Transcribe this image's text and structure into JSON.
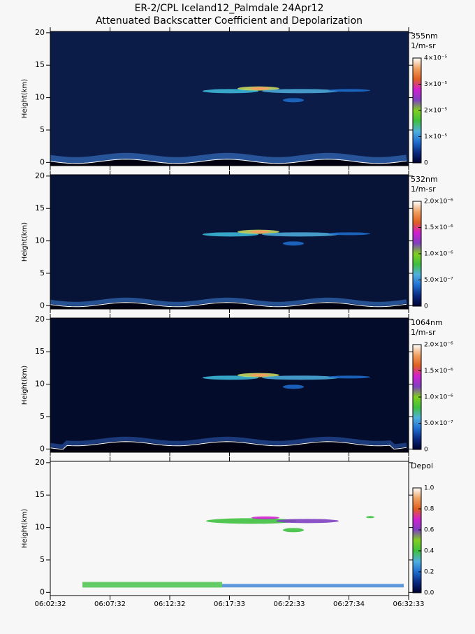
{
  "chart_data": [
    {
      "type": "heatmap",
      "title": "ER-2/CPL Iceland12_Palmdale 24Apr12",
      "subtitle": "Attenuated Backscatter Coefficient and Depolarization",
      "ylabel": "Height(km)",
      "ylim": [
        -0.5,
        20.2
      ],
      "yticks": [
        0,
        5,
        10,
        15,
        20
      ],
      "colorbar_title": "355nm",
      "colorbar_units": "1/m-sr",
      "clim": [
        0,
        4e-05
      ],
      "cticks": [
        0,
        {
          "value": 1e-05,
          "label": "1×10⁻⁵"
        },
        {
          "value": 2e-05,
          "label": "2×10⁻⁵"
        },
        {
          "value": 3e-05,
          "label": "3×10⁻⁵"
        },
        {
          "value": 4e-05,
          "label": "4×10⁻⁵"
        }
      ],
      "background": "#0c1c48",
      "colormap": [
        "#000030",
        "#0a2a80",
        "#1f6fd0",
        "#4fb0e0",
        "#3ec040",
        "#80d020",
        "#8040c0",
        "#d020d0",
        "#e06020",
        "#f0a060",
        "#ffffff"
      ]
    },
    {
      "type": "heatmap",
      "ylabel": "Height(km)",
      "ylim": [
        -0.5,
        20.2
      ],
      "yticks": [
        0,
        5,
        10,
        15,
        20
      ],
      "colorbar_title": "532nm",
      "colorbar_units": "1/m-sr",
      "clim": [
        0,
        2e-06
      ],
      "cticks": [
        0,
        {
          "value": 5e-07,
          "label": "5.0×10⁻⁷"
        },
        {
          "value": 1e-06,
          "label": "1.0×10⁻⁶"
        },
        {
          "value": 1.5e-06,
          "label": "1.5×10⁻⁶"
        },
        {
          "value": 2e-06,
          "label": "2.0×10⁻⁶"
        }
      ],
      "background": "#071438",
      "colormap": [
        "#000030",
        "#0a2a80",
        "#1f6fd0",
        "#4fb0e0",
        "#3ec040",
        "#80d020",
        "#8040c0",
        "#d020d0",
        "#e06020",
        "#f0a060",
        "#ffffff"
      ]
    },
    {
      "type": "heatmap",
      "ylabel": "Height(km)",
      "ylim": [
        -0.5,
        20.2
      ],
      "yticks": [
        0,
        5,
        10,
        15,
        20
      ],
      "colorbar_title": "1064nm",
      "colorbar_units": "1/m-sr",
      "clim": [
        0,
        2e-06
      ],
      "cticks": [
        0,
        {
          "value": 5e-07,
          "label": "5.0×10⁻⁷"
        },
        {
          "value": 1e-06,
          "label": "1.0×10⁻⁶"
        },
        {
          "value": 1.5e-06,
          "label": "1.5×10⁻⁶"
        },
        {
          "value": 2e-06,
          "label": "2.0×10⁻⁶"
        }
      ],
      "background": "#040c2c",
      "colormap": [
        "#000030",
        "#0a2a80",
        "#1f6fd0",
        "#4fb0e0",
        "#3ec040",
        "#80d020",
        "#8040c0",
        "#d020d0",
        "#e06020",
        "#f0a060",
        "#ffffff"
      ]
    },
    {
      "type": "heatmap",
      "ylabel": "Height(km)",
      "ylim": [
        -0.5,
        20.2
      ],
      "yticks": [
        0,
        5,
        10,
        15,
        20
      ],
      "colorbar_title": "Depol",
      "clim": [
        0,
        1
      ],
      "cticks": [
        {
          "value": 0,
          "label": "0.0"
        },
        {
          "value": 0.2,
          "label": "0.2"
        },
        {
          "value": 0.4,
          "label": "0.4"
        },
        {
          "value": 0.6,
          "label": "0.6"
        },
        {
          "value": 0.8,
          "label": "0.8"
        },
        {
          "value": 1,
          "label": "1.0"
        }
      ],
      "background": "#f7f7f7",
      "colormap": [
        "#000030",
        "#0a2a80",
        "#1f6fd0",
        "#4fb0e0",
        "#3ec040",
        "#80d020",
        "#8040c0",
        "#d020d0",
        "#e06020",
        "#f0a060",
        "#ffffff"
      ],
      "xticks": [
        "06:02:32",
        "06:07:32",
        "06:12:32",
        "06:17:33",
        "06:22:33",
        "06:27:34",
        "06:32:33"
      ]
    }
  ]
}
